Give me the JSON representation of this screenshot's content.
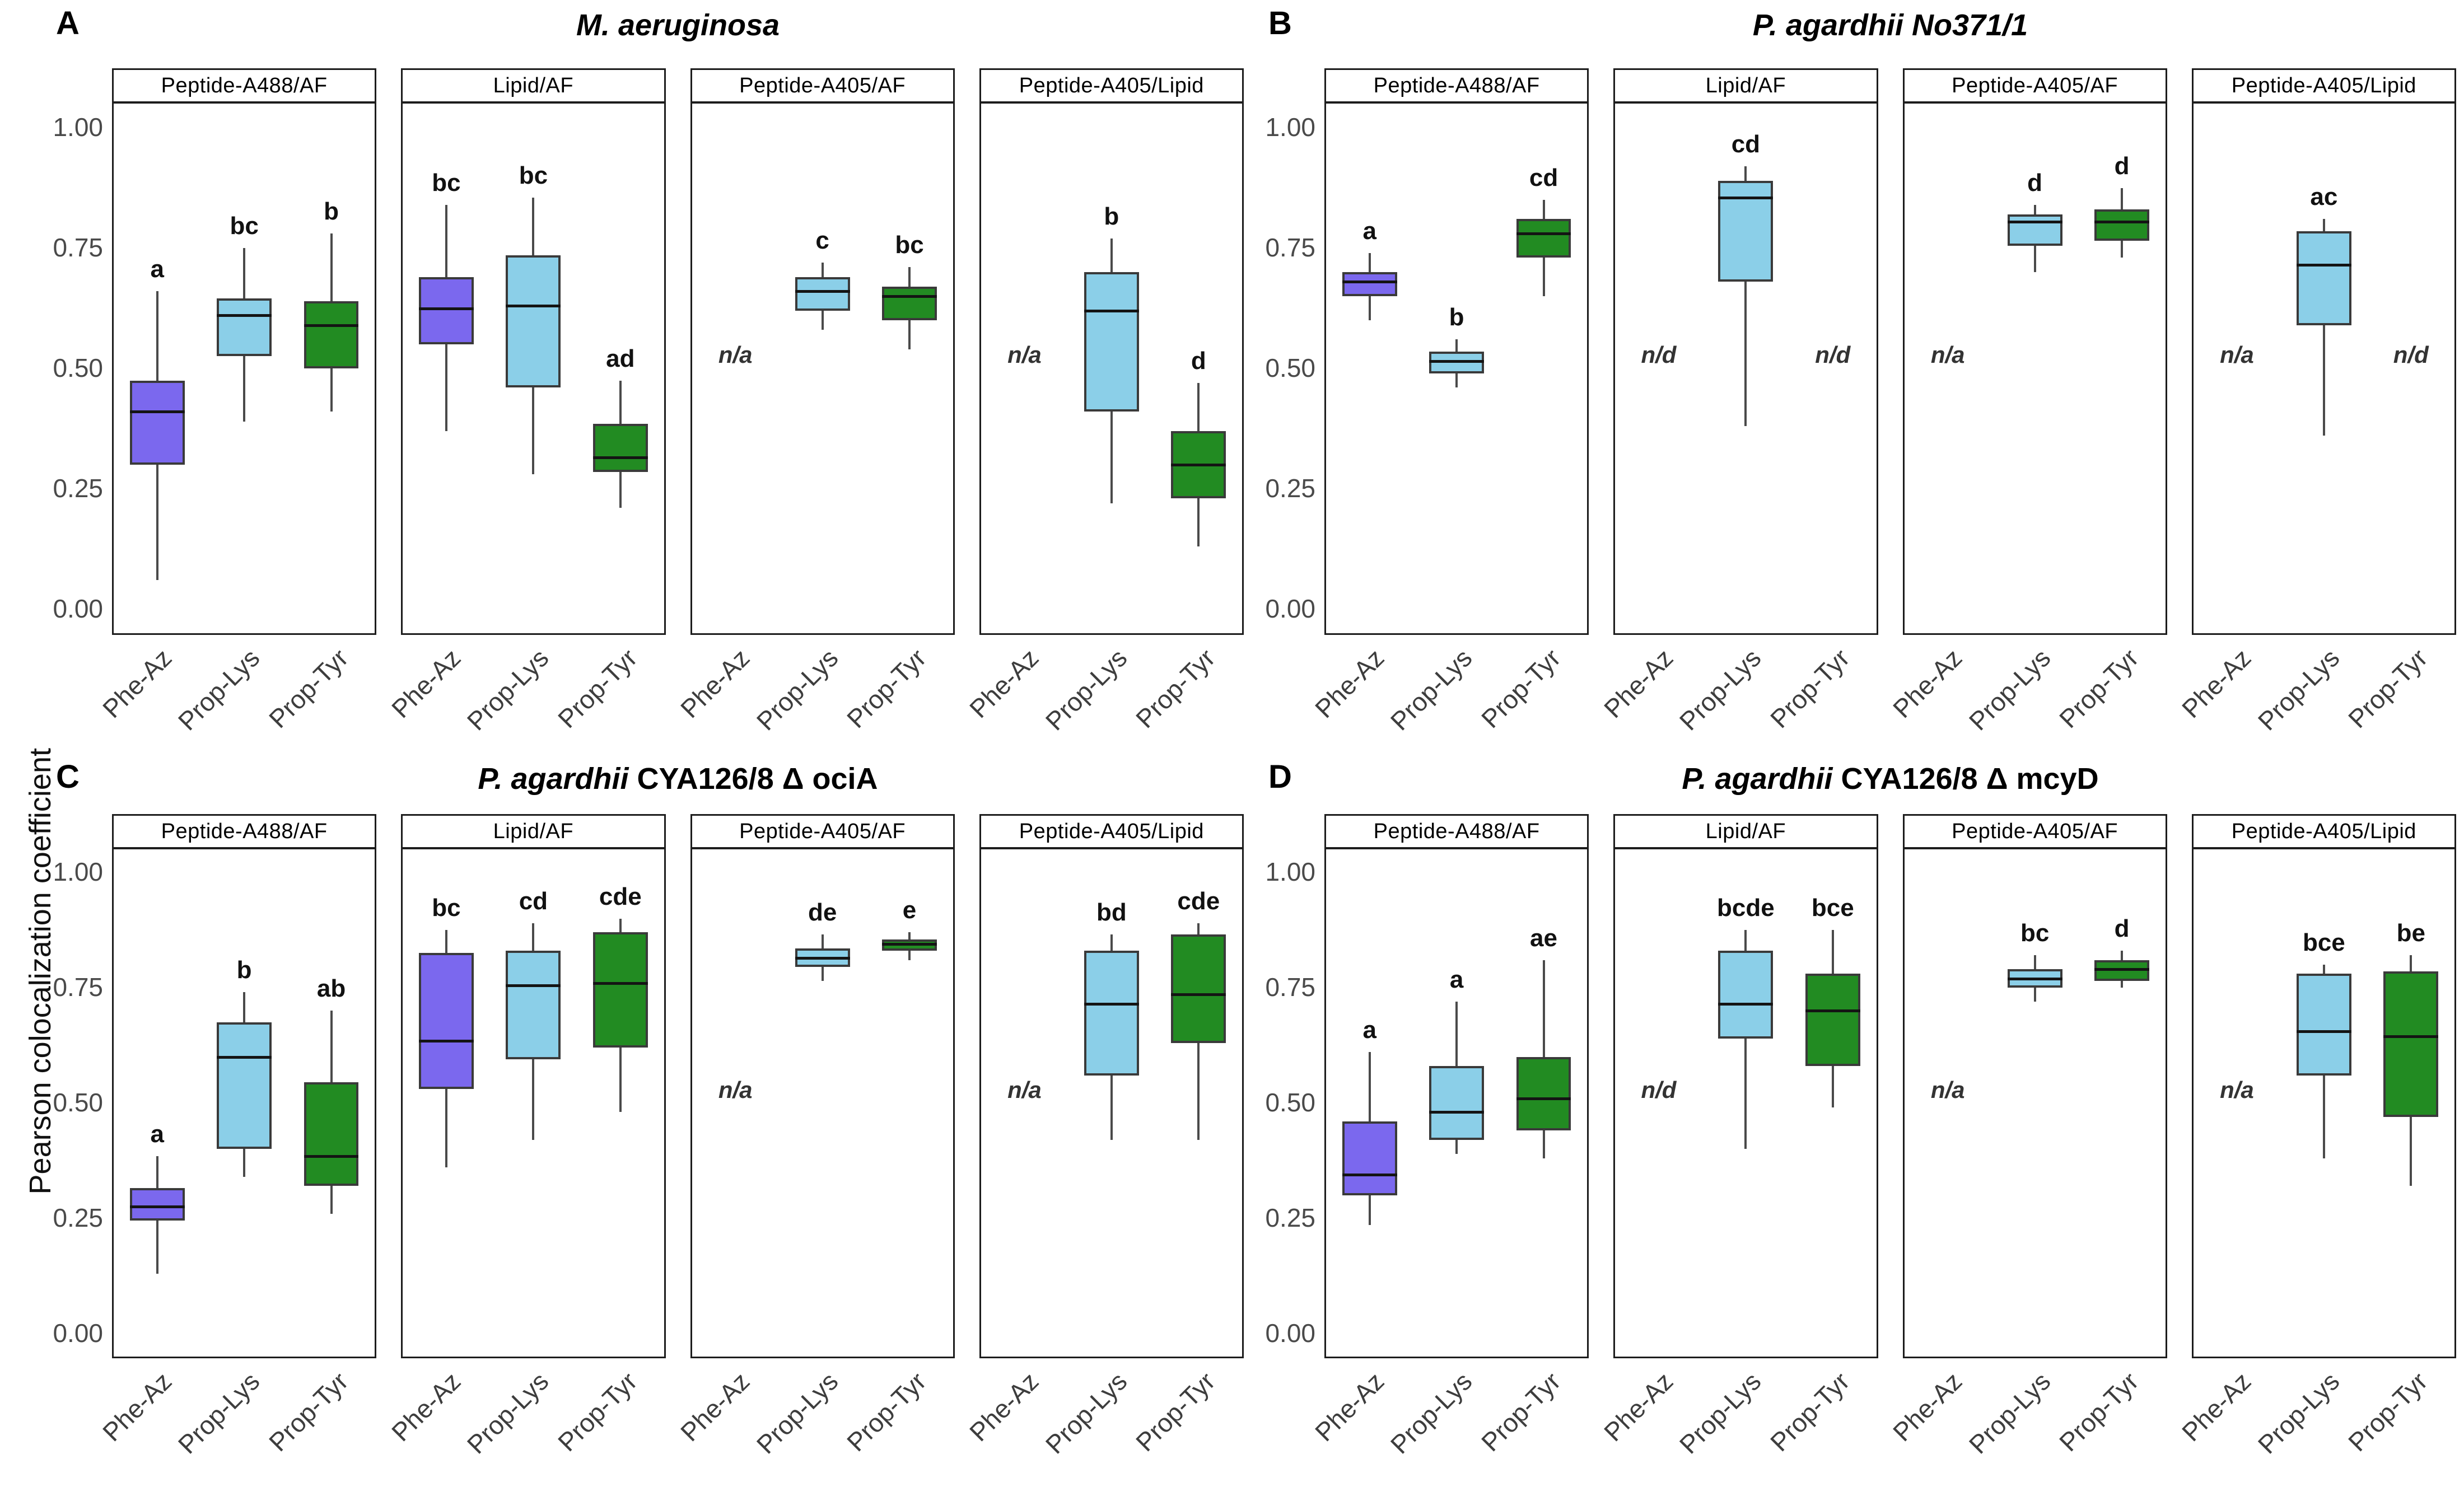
{
  "figure": {
    "y_axis_title": "Pearson colocalization coefficient",
    "background": "#ffffff"
  },
  "chart_data": {
    "type": "boxplot",
    "layout": "2x2 lettered panels, each with 4 facets sharing one y axis",
    "ylabel": "Pearson colocalization coefficient",
    "ylim": [
      0,
      1
    ],
    "y_expansion": [
      -0.05,
      1.05
    ],
    "yticks": [
      1.0,
      0.75,
      0.5,
      0.25,
      0.0
    ],
    "ytick_labels": [
      "1.00",
      "0.75",
      "0.50",
      "0.25",
      "0.00"
    ],
    "grid": "off",
    "categories": [
      "Phe-Az",
      "Prop-Lys",
      "Prop-Tyr"
    ],
    "category_colors": {
      "Phe-Az": "#7b68ee",
      "Prop-Lys": "#8bcfe8",
      "Prop-Tyr": "#228b22"
    },
    "box_border_color": "#3a3a3a",
    "whisker_color": "#4a4a4a",
    "median_color": "#141414",
    "facet_labels": [
      "Peptide-A488/AF",
      "Lipid/AF",
      "Peptide-A405/AF",
      "Peptide-A405/Lipid"
    ],
    "panels": [
      {
        "letter": "A",
        "title_italic": "M. aeruginosa",
        "title_rest": "",
        "facets": [
          {
            "label": "Peptide-A488/AF",
            "boxes": [
              {
                "cat": "Phe-Az",
                "sig": "a",
                "lo": 0.06,
                "q1": 0.3,
                "med": 0.41,
                "q3": 0.475,
                "hi": 0.66
              },
              {
                "cat": "Prop-Lys",
                "sig": "bc",
                "lo": 0.39,
                "q1": 0.525,
                "med": 0.61,
                "q3": 0.645,
                "hi": 0.75
              },
              {
                "cat": "Prop-Tyr",
                "sig": "b",
                "lo": 0.41,
                "q1": 0.5,
                "med": 0.59,
                "q3": 0.64,
                "hi": 0.78
              }
            ]
          },
          {
            "label": "Lipid/AF",
            "boxes": [
              {
                "cat": "Phe-Az",
                "sig": "bc",
                "lo": 0.37,
                "q1": 0.55,
                "med": 0.625,
                "q3": 0.69,
                "hi": 0.84
              },
              {
                "cat": "Prop-Lys",
                "sig": "bc",
                "lo": 0.28,
                "q1": 0.46,
                "med": 0.63,
                "q3": 0.735,
                "hi": 0.855
              },
              {
                "cat": "Prop-Tyr",
                "sig": "ad",
                "lo": 0.21,
                "q1": 0.285,
                "med": 0.315,
                "q3": 0.385,
                "hi": 0.475
              }
            ]
          },
          {
            "label": "Peptide-A405/AF",
            "boxes": [
              {
                "cat": "Phe-Az",
                "na": "n/a"
              },
              {
                "cat": "Prop-Lys",
                "sig": "c",
                "lo": 0.58,
                "q1": 0.62,
                "med": 0.66,
                "q3": 0.69,
                "hi": 0.72
              },
              {
                "cat": "Prop-Tyr",
                "sig": "bc",
                "lo": 0.54,
                "q1": 0.6,
                "med": 0.65,
                "q3": 0.67,
                "hi": 0.71
              }
            ]
          },
          {
            "label": "Peptide-A405/Lipid",
            "boxes": [
              {
                "cat": "Phe-Az",
                "na": "n/a"
              },
              {
                "cat": "Prop-Lys",
                "sig": "b",
                "lo": 0.22,
                "q1": 0.41,
                "med": 0.62,
                "q3": 0.7,
                "hi": 0.77
              },
              {
                "cat": "Prop-Tyr",
                "sig": "d",
                "lo": 0.13,
                "q1": 0.23,
                "med": 0.3,
                "q3": 0.37,
                "hi": 0.47
              }
            ]
          }
        ]
      },
      {
        "letter": "B",
        "title_italic": "P. agardhii No371/1",
        "title_rest": "",
        "facets": [
          {
            "label": "Peptide-A488/AF",
            "boxes": [
              {
                "cat": "Phe-Az",
                "sig": "a",
                "lo": 0.6,
                "q1": 0.65,
                "med": 0.68,
                "q3": 0.7,
                "hi": 0.74
              },
              {
                "cat": "Prop-Lys",
                "sig": "b",
                "lo": 0.46,
                "q1": 0.49,
                "med": 0.515,
                "q3": 0.535,
                "hi": 0.56
              },
              {
                "cat": "Prop-Tyr",
                "sig": "cd",
                "lo": 0.65,
                "q1": 0.73,
                "med": 0.78,
                "q3": 0.81,
                "hi": 0.85
              }
            ]
          },
          {
            "label": "Lipid/AF",
            "boxes": [
              {
                "cat": "Phe-Az",
                "na": "n/d"
              },
              {
                "cat": "Prop-Lys",
                "sig": "cd",
                "lo": 0.38,
                "q1": 0.68,
                "med": 0.855,
                "q3": 0.89,
                "hi": 0.92
              },
              {
                "cat": "Prop-Tyr",
                "na": "n/d"
              }
            ]
          },
          {
            "label": "Peptide-A405/AF",
            "boxes": [
              {
                "cat": "Phe-Az",
                "na": "n/a"
              },
              {
                "cat": "Prop-Lys",
                "sig": "d",
                "lo": 0.7,
                "q1": 0.755,
                "med": 0.805,
                "q3": 0.82,
                "hi": 0.84
              },
              {
                "cat": "Prop-Tyr",
                "sig": "d",
                "lo": 0.73,
                "q1": 0.765,
                "med": 0.805,
                "q3": 0.83,
                "hi": 0.875
              }
            ]
          },
          {
            "label": "Peptide-A405/Lipid",
            "boxes": [
              {
                "cat": "Phe-Az",
                "na": "n/a"
              },
              {
                "cat": "Prop-Lys",
                "sig": "ac",
                "lo": 0.36,
                "q1": 0.59,
                "med": 0.715,
                "q3": 0.785,
                "hi": 0.81
              },
              {
                "cat": "Prop-Tyr",
                "na": "n/d"
              }
            ]
          }
        ]
      },
      {
        "letter": "C",
        "title_italic": "P. agardhii",
        "title_rest": " CYA126/8 Δ ociA",
        "facets": [
          {
            "label": "Peptide-A488/AF",
            "boxes": [
              {
                "cat": "Phe-Az",
                "sig": "a",
                "lo": 0.13,
                "q1": 0.245,
                "med": 0.275,
                "q3": 0.315,
                "hi": 0.385
              },
              {
                "cat": "Prop-Lys",
                "sig": "b",
                "lo": 0.34,
                "q1": 0.4,
                "med": 0.6,
                "q3": 0.675,
                "hi": 0.74
              },
              {
                "cat": "Prop-Tyr",
                "sig": "ab",
                "lo": 0.26,
                "q1": 0.32,
                "med": 0.385,
                "q3": 0.545,
                "hi": 0.7
              }
            ]
          },
          {
            "label": "Lipid/AF",
            "boxes": [
              {
                "cat": "Phe-Az",
                "sig": "bc",
                "lo": 0.36,
                "q1": 0.53,
                "med": 0.635,
                "q3": 0.825,
                "hi": 0.875
              },
              {
                "cat": "Prop-Lys",
                "sig": "cd",
                "lo": 0.42,
                "q1": 0.595,
                "med": 0.755,
                "q3": 0.83,
                "hi": 0.89
              },
              {
                "cat": "Prop-Tyr",
                "sig": "cde",
                "lo": 0.48,
                "q1": 0.62,
                "med": 0.76,
                "q3": 0.87,
                "hi": 0.9
              }
            ]
          },
          {
            "label": "Peptide-A405/AF",
            "boxes": [
              {
                "cat": "Phe-Az",
                "na": "n/a"
              },
              {
                "cat": "Prop-Lys",
                "sig": "de",
                "lo": 0.765,
                "q1": 0.795,
                "med": 0.815,
                "q3": 0.835,
                "hi": 0.865
              },
              {
                "cat": "Prop-Tyr",
                "sig": "e",
                "lo": 0.81,
                "q1": 0.83,
                "med": 0.845,
                "q3": 0.855,
                "hi": 0.87
              }
            ]
          },
          {
            "label": "Peptide-A405/Lipid",
            "boxes": [
              {
                "cat": "Phe-Az",
                "na": "n/a"
              },
              {
                "cat": "Prop-Lys",
                "sig": "bd",
                "lo": 0.42,
                "q1": 0.56,
                "med": 0.715,
                "q3": 0.83,
                "hi": 0.865
              },
              {
                "cat": "Prop-Tyr",
                "sig": "cde",
                "lo": 0.42,
                "q1": 0.63,
                "med": 0.735,
                "q3": 0.865,
                "hi": 0.89
              }
            ]
          }
        ]
      },
      {
        "letter": "D",
        "title_italic": "P. agardhii",
        "title_rest": " CYA126/8 Δ mcyD",
        "facets": [
          {
            "label": "Peptide-A488/AF",
            "boxes": [
              {
                "cat": "Phe-Az",
                "sig": "a",
                "lo": 0.235,
                "q1": 0.3,
                "med": 0.345,
                "q3": 0.46,
                "hi": 0.61
              },
              {
                "cat": "Prop-Lys",
                "sig": "a",
                "lo": 0.39,
                "q1": 0.42,
                "med": 0.48,
                "q3": 0.58,
                "hi": 0.72
              },
              {
                "cat": "Prop-Tyr",
                "sig": "ae",
                "lo": 0.38,
                "q1": 0.44,
                "med": 0.51,
                "q3": 0.6,
                "hi": 0.81
              }
            ]
          },
          {
            "label": "Lipid/AF",
            "boxes": [
              {
                "cat": "Phe-Az",
                "na": "n/d"
              },
              {
                "cat": "Prop-Lys",
                "sig": "bcde",
                "lo": 0.4,
                "q1": 0.64,
                "med": 0.715,
                "q3": 0.83,
                "hi": 0.875
              },
              {
                "cat": "Prop-Tyr",
                "sig": "bce",
                "lo": 0.49,
                "q1": 0.58,
                "med": 0.7,
                "q3": 0.78,
                "hi": 0.875
              }
            ]
          },
          {
            "label": "Peptide-A405/AF",
            "boxes": [
              {
                "cat": "Phe-Az",
                "na": "n/a"
              },
              {
                "cat": "Prop-Lys",
                "sig": "bc",
                "lo": 0.72,
                "q1": 0.75,
                "med": 0.77,
                "q3": 0.79,
                "hi": 0.82
              },
              {
                "cat": "Prop-Tyr",
                "sig": "d",
                "lo": 0.75,
                "q1": 0.765,
                "med": 0.79,
                "q3": 0.81,
                "hi": 0.83
              }
            ]
          },
          {
            "label": "Peptide-A405/Lipid",
            "boxes": [
              {
                "cat": "Phe-Az",
                "na": "n/a"
              },
              {
                "cat": "Prop-Lys",
                "sig": "bce",
                "lo": 0.38,
                "q1": 0.56,
                "med": 0.655,
                "q3": 0.78,
                "hi": 0.8
              },
              {
                "cat": "Prop-Tyr",
                "sig": "be",
                "lo": 0.32,
                "q1": 0.47,
                "med": 0.645,
                "q3": 0.785,
                "hi": 0.82
              }
            ]
          }
        ]
      }
    ]
  }
}
